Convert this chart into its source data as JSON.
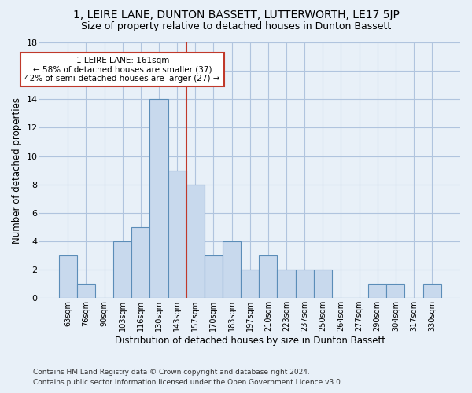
{
  "title": "1, LEIRE LANE, DUNTON BASSETT, LUTTERWORTH, LE17 5JP",
  "subtitle": "Size of property relative to detached houses in Dunton Bassett",
  "xlabel": "Distribution of detached houses by size in Dunton Bassett",
  "ylabel": "Number of detached properties",
  "categories": [
    "63sqm",
    "76sqm",
    "90sqm",
    "103sqm",
    "116sqm",
    "130sqm",
    "143sqm",
    "157sqm",
    "170sqm",
    "183sqm",
    "197sqm",
    "210sqm",
    "223sqm",
    "237sqm",
    "250sqm",
    "264sqm",
    "277sqm",
    "290sqm",
    "304sqm",
    "317sqm",
    "330sqm"
  ],
  "values": [
    3,
    1,
    0,
    4,
    5,
    14,
    9,
    8,
    3,
    4,
    2,
    3,
    2,
    2,
    2,
    0,
    0,
    1,
    1,
    0,
    1
  ],
  "bar_color": "#c8d9ed",
  "bar_edge_color": "#5b8db8",
  "subject_line_color": "#c0392b",
  "annotation_line1": "1 LEIRE LANE: 161sqm",
  "annotation_line2": "← 58% of detached houses are smaller (37)",
  "annotation_line3": "42% of semi-detached houses are larger (27) →",
  "annotation_box_color": "#ffffff",
  "annotation_box_edge_color": "#c0392b",
  "ylim": [
    0,
    18
  ],
  "yticks": [
    0,
    2,
    4,
    6,
    8,
    10,
    12,
    14,
    16,
    18
  ],
  "grid_color": "#b0c4de",
  "background_color": "#e8f0f8",
  "footer_line1": "Contains HM Land Registry data © Crown copyright and database right 2024.",
  "footer_line2": "Contains public sector information licensed under the Open Government Licence v3.0.",
  "title_fontsize": 10,
  "subtitle_fontsize": 9,
  "xlabel_fontsize": 8.5,
  "ylabel_fontsize": 8.5,
  "annotation_fontsize": 7.5,
  "footer_fontsize": 6.5
}
